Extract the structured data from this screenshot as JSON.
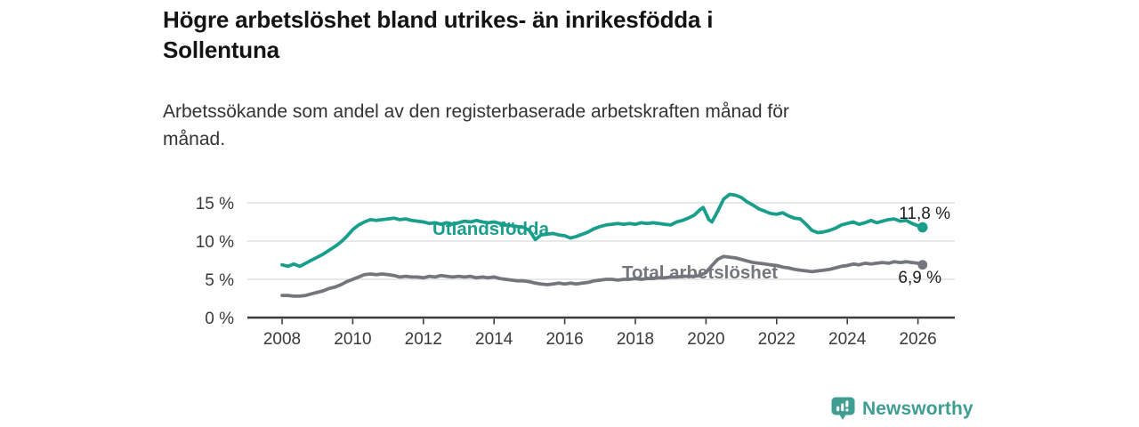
{
  "header": {
    "title": "Högre arbetslöshet bland utrikes- än inrikesfödda i Sollentuna",
    "title_lines": [
      "Högre arbetslöshet bland utrikes- än inrikesfödda i",
      "Sollentuna"
    ],
    "subtitle": "Arbetssökande som andel av den registerbaserade arbetskraften månad för månad.",
    "subtitle_lines": [
      "Arbetssökande som andel av den registerbaserade arbetskraften månad för",
      "månad."
    ]
  },
  "footer": {
    "brand": "Newsworthy",
    "logo_icon": "bar-chart-speech-bubble-icon",
    "brand_color": "#3f9d92"
  },
  "chart_data": {
    "type": "line",
    "title": "Högre arbetslöshet bland utrikes- än inrikesfödda i Sollentuna",
    "subtitle": "Arbetssökande som andel av den registerbaserade arbetskraften månad för månad.",
    "unit": "%",
    "grid": "horizontal",
    "x_axis": {
      "ticks": [
        2008,
        2010,
        2012,
        2014,
        2016,
        2018,
        2020,
        2022,
        2024,
        2026
      ],
      "range": [
        2007.1,
        2027.0
      ]
    },
    "y_axis": {
      "ticks": [
        {
          "value": 0,
          "label": "0 %"
        },
        {
          "value": 5,
          "label": "5 %"
        },
        {
          "value": 10,
          "label": "10 %"
        },
        {
          "value": 15,
          "label": "15 %"
        }
      ],
      "gridlines": [
        5,
        10,
        15
      ],
      "range": [
        0,
        16.5
      ]
    },
    "series": [
      {
        "name": "Utlandsfödda",
        "color": "#1a9e8c",
        "end_label": "11,8 %",
        "end_value": 11.8,
        "points": [
          [
            2008.0,
            6.9
          ],
          [
            2008.17,
            6.7
          ],
          [
            2008.33,
            7.0
          ],
          [
            2008.5,
            6.7
          ],
          [
            2008.67,
            7.1
          ],
          [
            2008.83,
            7.5
          ],
          [
            2009.0,
            7.9
          ],
          [
            2009.17,
            8.3
          ],
          [
            2009.33,
            8.8
          ],
          [
            2009.5,
            9.3
          ],
          [
            2009.67,
            9.9
          ],
          [
            2009.83,
            10.6
          ],
          [
            2010.0,
            11.5
          ],
          [
            2010.17,
            12.1
          ],
          [
            2010.33,
            12.5
          ],
          [
            2010.5,
            12.8
          ],
          [
            2010.67,
            12.7
          ],
          [
            2010.83,
            12.8
          ],
          [
            2011.0,
            12.9
          ],
          [
            2011.17,
            13.0
          ],
          [
            2011.33,
            12.8
          ],
          [
            2011.5,
            12.9
          ],
          [
            2011.67,
            12.7
          ],
          [
            2011.83,
            12.6
          ],
          [
            2012.0,
            12.5
          ],
          [
            2012.17,
            12.3
          ],
          [
            2012.33,
            12.4
          ],
          [
            2012.5,
            12.2
          ],
          [
            2012.67,
            12.4
          ],
          [
            2012.83,
            12.2
          ],
          [
            2013.0,
            12.4
          ],
          [
            2013.17,
            12.6
          ],
          [
            2013.33,
            12.5
          ],
          [
            2013.5,
            12.7
          ],
          [
            2013.67,
            12.5
          ],
          [
            2013.83,
            12.4
          ],
          [
            2014.0,
            12.5
          ],
          [
            2014.17,
            12.3
          ],
          [
            2014.33,
            12.1
          ],
          [
            2014.5,
            12.0
          ],
          [
            2014.67,
            11.9
          ],
          [
            2014.83,
            11.8
          ],
          [
            2015.0,
            11.4
          ],
          [
            2015.17,
            10.2
          ],
          [
            2015.33,
            10.8
          ],
          [
            2015.5,
            10.9
          ],
          [
            2015.67,
            11.0
          ],
          [
            2015.83,
            10.8
          ],
          [
            2016.0,
            10.7
          ],
          [
            2016.17,
            10.4
          ],
          [
            2016.33,
            10.6
          ],
          [
            2016.5,
            10.9
          ],
          [
            2016.67,
            11.2
          ],
          [
            2016.83,
            11.6
          ],
          [
            2017.0,
            11.9
          ],
          [
            2017.17,
            12.1
          ],
          [
            2017.33,
            12.2
          ],
          [
            2017.5,
            12.3
          ],
          [
            2017.67,
            12.2
          ],
          [
            2017.83,
            12.3
          ],
          [
            2018.0,
            12.2
          ],
          [
            2018.17,
            12.4
          ],
          [
            2018.33,
            12.3
          ],
          [
            2018.5,
            12.4
          ],
          [
            2018.67,
            12.3
          ],
          [
            2018.83,
            12.2
          ],
          [
            2019.0,
            12.1
          ],
          [
            2019.17,
            12.5
          ],
          [
            2019.33,
            12.7
          ],
          [
            2019.5,
            13.0
          ],
          [
            2019.67,
            13.4
          ],
          [
            2019.83,
            14.1
          ],
          [
            2019.92,
            14.4
          ],
          [
            2020.08,
            12.8
          ],
          [
            2020.17,
            12.5
          ],
          [
            2020.33,
            13.9
          ],
          [
            2020.5,
            15.5
          ],
          [
            2020.67,
            16.1
          ],
          [
            2020.83,
            16.0
          ],
          [
            2021.0,
            15.7
          ],
          [
            2021.17,
            15.1
          ],
          [
            2021.33,
            14.7
          ],
          [
            2021.5,
            14.2
          ],
          [
            2021.67,
            13.9
          ],
          [
            2021.83,
            13.6
          ],
          [
            2022.0,
            13.5
          ],
          [
            2022.17,
            13.7
          ],
          [
            2022.33,
            13.3
          ],
          [
            2022.5,
            13.0
          ],
          [
            2022.67,
            12.9
          ],
          [
            2022.83,
            12.2
          ],
          [
            2023.0,
            11.4
          ],
          [
            2023.17,
            11.1
          ],
          [
            2023.33,
            11.2
          ],
          [
            2023.5,
            11.4
          ],
          [
            2023.67,
            11.7
          ],
          [
            2023.83,
            12.1
          ],
          [
            2024.0,
            12.3
          ],
          [
            2024.17,
            12.5
          ],
          [
            2024.33,
            12.2
          ],
          [
            2024.5,
            12.4
          ],
          [
            2024.67,
            12.7
          ],
          [
            2024.83,
            12.4
          ],
          [
            2025.0,
            12.6
          ],
          [
            2025.17,
            12.8
          ],
          [
            2025.33,
            12.9
          ],
          [
            2025.5,
            12.6
          ],
          [
            2025.67,
            12.7
          ],
          [
            2025.83,
            12.3
          ],
          [
            2026.0,
            12.0
          ],
          [
            2026.13,
            11.8
          ]
        ]
      },
      {
        "name": "Total arbetslöshet",
        "color": "#73767c",
        "end_label": "6,9 %",
        "end_value": 6.9,
        "points": [
          [
            2008.0,
            2.9
          ],
          [
            2008.17,
            2.9
          ],
          [
            2008.33,
            2.8
          ],
          [
            2008.5,
            2.8
          ],
          [
            2008.67,
            2.9
          ],
          [
            2008.83,
            3.1
          ],
          [
            2009.0,
            3.3
          ],
          [
            2009.17,
            3.5
          ],
          [
            2009.33,
            3.8
          ],
          [
            2009.5,
            4.0
          ],
          [
            2009.67,
            4.3
          ],
          [
            2009.83,
            4.7
          ],
          [
            2010.0,
            5.0
          ],
          [
            2010.17,
            5.3
          ],
          [
            2010.33,
            5.6
          ],
          [
            2010.5,
            5.7
          ],
          [
            2010.67,
            5.6
          ],
          [
            2010.83,
            5.7
          ],
          [
            2011.0,
            5.6
          ],
          [
            2011.17,
            5.5
          ],
          [
            2011.33,
            5.3
          ],
          [
            2011.5,
            5.4
          ],
          [
            2011.67,
            5.3
          ],
          [
            2011.83,
            5.3
          ],
          [
            2012.0,
            5.2
          ],
          [
            2012.17,
            5.4
          ],
          [
            2012.33,
            5.3
          ],
          [
            2012.5,
            5.5
          ],
          [
            2012.67,
            5.4
          ],
          [
            2012.83,
            5.3
          ],
          [
            2013.0,
            5.4
          ],
          [
            2013.17,
            5.3
          ],
          [
            2013.33,
            5.4
          ],
          [
            2013.5,
            5.2
          ],
          [
            2013.67,
            5.3
          ],
          [
            2013.83,
            5.2
          ],
          [
            2014.0,
            5.3
          ],
          [
            2014.17,
            5.1
          ],
          [
            2014.33,
            5.0
          ],
          [
            2014.5,
            4.9
          ],
          [
            2014.67,
            4.8
          ],
          [
            2014.83,
            4.8
          ],
          [
            2015.0,
            4.7
          ],
          [
            2015.17,
            4.5
          ],
          [
            2015.33,
            4.4
          ],
          [
            2015.5,
            4.3
          ],
          [
            2015.67,
            4.4
          ],
          [
            2015.83,
            4.5
          ],
          [
            2016.0,
            4.4
          ],
          [
            2016.17,
            4.5
          ],
          [
            2016.33,
            4.4
          ],
          [
            2016.5,
            4.5
          ],
          [
            2016.67,
            4.6
          ],
          [
            2016.83,
            4.8
          ],
          [
            2017.0,
            4.9
          ],
          [
            2017.17,
            5.0
          ],
          [
            2017.33,
            5.0
          ],
          [
            2017.5,
            4.9
          ],
          [
            2017.67,
            5.0
          ],
          [
            2017.83,
            5.0
          ],
          [
            2018.0,
            5.1
          ],
          [
            2018.17,
            5.0
          ],
          [
            2018.33,
            5.1
          ],
          [
            2018.5,
            5.1
          ],
          [
            2018.67,
            5.2
          ],
          [
            2018.83,
            5.2
          ],
          [
            2019.0,
            5.3
          ],
          [
            2019.17,
            5.3
          ],
          [
            2019.33,
            5.4
          ],
          [
            2019.5,
            5.4
          ],
          [
            2019.67,
            5.4
          ],
          [
            2019.83,
            5.5
          ],
          [
            2020.0,
            5.9
          ],
          [
            2020.17,
            6.8
          ],
          [
            2020.33,
            7.6
          ],
          [
            2020.5,
            8.0
          ],
          [
            2020.67,
            7.9
          ],
          [
            2020.83,
            7.8
          ],
          [
            2021.0,
            7.6
          ],
          [
            2021.17,
            7.4
          ],
          [
            2021.33,
            7.2
          ],
          [
            2021.5,
            7.1
          ],
          [
            2021.67,
            7.0
          ],
          [
            2021.83,
            6.9
          ],
          [
            2022.0,
            6.8
          ],
          [
            2022.17,
            6.6
          ],
          [
            2022.33,
            6.5
          ],
          [
            2022.5,
            6.3
          ],
          [
            2022.67,
            6.2
          ],
          [
            2022.83,
            6.1
          ],
          [
            2023.0,
            6.0
          ],
          [
            2023.17,
            6.1
          ],
          [
            2023.33,
            6.2
          ],
          [
            2023.5,
            6.3
          ],
          [
            2023.67,
            6.5
          ],
          [
            2023.83,
            6.7
          ],
          [
            2024.0,
            6.8
          ],
          [
            2024.17,
            7.0
          ],
          [
            2024.33,
            6.9
          ],
          [
            2024.5,
            7.1
          ],
          [
            2024.67,
            7.0
          ],
          [
            2024.83,
            7.1
          ],
          [
            2025.0,
            7.2
          ],
          [
            2025.17,
            7.1
          ],
          [
            2025.33,
            7.3
          ],
          [
            2025.5,
            7.2
          ],
          [
            2025.67,
            7.3
          ],
          [
            2025.83,
            7.2
          ],
          [
            2026.0,
            7.1
          ],
          [
            2026.13,
            6.9
          ]
        ]
      }
    ]
  }
}
